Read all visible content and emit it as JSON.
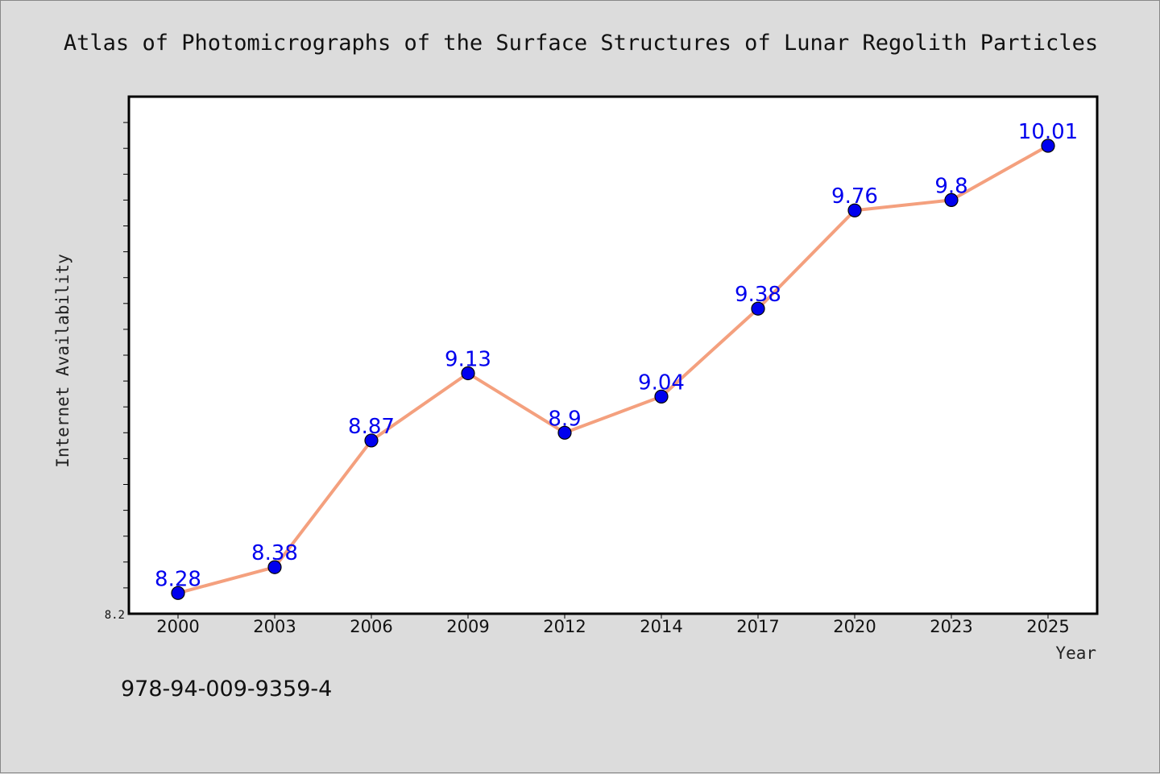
{
  "footer_text": "978-94-009-9359-4",
  "colors": {
    "background": "#dcdcdc",
    "plot_background": "#ffffff",
    "line": "#f4a07e",
    "marker": "#0000ee",
    "data_label": "#0000ee"
  },
  "chart_data": {
    "type": "line",
    "title": "Atlas of Photomicrographs of the Surface Structures of Lunar Regolith Particles",
    "xlabel": "Year",
    "ylabel": "Internet Availability",
    "categories": [
      "2000",
      "2003",
      "2006",
      "2009",
      "2012",
      "2014",
      "2017",
      "2020",
      "2023",
      "2025"
    ],
    "series": [
      {
        "values": [
          8.28,
          8.38,
          8.87,
          9.13,
          8.9,
          9.04,
          9.38,
          9.76,
          9.8,
          10.01
        ]
      }
    ],
    "data_labels": [
      "8.28",
      "8.38",
      "8.87",
      "9.13",
      "8.9",
      "9.04",
      "9.38",
      "9.76",
      "9.8",
      "10.01"
    ],
    "ylim": [
      8.2,
      10.2
    ],
    "yticks_labeled": [
      "8.2"
    ],
    "grid": false,
    "legend": "none"
  }
}
